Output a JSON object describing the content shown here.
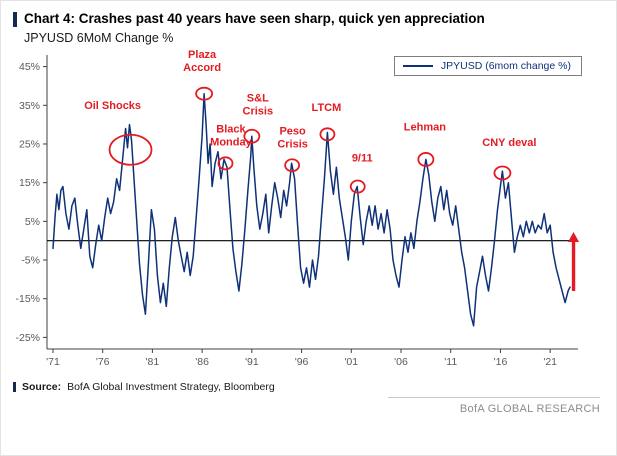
{
  "header": {
    "title": "Chart 4: Crashes past 40 years have seen sharp, quick yen appreciation",
    "subtitle": "JPYUSD 6MoM Change %"
  },
  "footer": {
    "source_label": "Source:",
    "source_text": "BofA Global Investment Strategy, Bloomberg",
    "brand": "BofA GLOBAL RESEARCH"
  },
  "colors": {
    "navy": "#0e3178",
    "red": "#e31b23",
    "accent": "#13294f",
    "axis_text": "#595959"
  },
  "chart_data": {
    "type": "line",
    "title": "Chart 4: Crashes past 40 years have seen sharp, quick yen appreciation",
    "ylabel": "JPYUSD 6MoM Change %",
    "xlabel": "",
    "xlim": [
      1970.4,
      2023.8
    ],
    "ylim": [
      -28,
      48
    ],
    "grid": false,
    "zero_line": true,
    "legend_position": "top-right",
    "y_ticks": [
      {
        "y": 45,
        "label": "45%"
      },
      {
        "y": 35,
        "label": "35%"
      },
      {
        "y": 25,
        "label": "25%"
      },
      {
        "y": 15,
        "label": "15%"
      },
      {
        "y": 5,
        "label": "5%"
      },
      {
        "y": -5,
        "label": "-5%"
      },
      {
        "y": -15,
        "label": "-15%"
      },
      {
        "y": -25,
        "label": "-25%"
      }
    ],
    "x_ticks": [
      {
        "x": 1971,
        "label": "'71"
      },
      {
        "x": 1976,
        "label": "'76"
      },
      {
        "x": 1981,
        "label": "'81"
      },
      {
        "x": 1986,
        "label": "'86"
      },
      {
        "x": 1991,
        "label": "'91"
      },
      {
        "x": 1996,
        "label": "'96"
      },
      {
        "x": 2001,
        "label": "'01"
      },
      {
        "x": 2006,
        "label": "'06"
      },
      {
        "x": 2011,
        "label": "'11"
      },
      {
        "x": 2016,
        "label": "'16"
      },
      {
        "x": 2021,
        "label": "'21"
      }
    ],
    "series": [
      {
        "name": "JPYUSD (6mom change %)",
        "color": "#0e3178",
        "points": [
          [
            1971.0,
            -2
          ],
          [
            1971.2,
            6
          ],
          [
            1971.4,
            12
          ],
          [
            1971.6,
            8
          ],
          [
            1971.8,
            13
          ],
          [
            1972.0,
            14
          ],
          [
            1972.3,
            7
          ],
          [
            1972.6,
            3
          ],
          [
            1972.9,
            9
          ],
          [
            1973.2,
            11
          ],
          [
            1973.5,
            4
          ],
          [
            1973.8,
            -2
          ],
          [
            1974.1,
            3
          ],
          [
            1974.4,
            8
          ],
          [
            1974.7,
            -4
          ],
          [
            1975.0,
            -7
          ],
          [
            1975.3,
            -1
          ],
          [
            1975.6,
            4
          ],
          [
            1975.9,
            0
          ],
          [
            1976.2,
            6
          ],
          [
            1976.5,
            11
          ],
          [
            1976.8,
            7
          ],
          [
            1977.1,
            10
          ],
          [
            1977.4,
            16
          ],
          [
            1977.7,
            13
          ],
          [
            1978.0,
            21
          ],
          [
            1978.3,
            29
          ],
          [
            1978.5,
            24
          ],
          [
            1978.7,
            30
          ],
          [
            1978.9,
            26
          ],
          [
            1979.1,
            18
          ],
          [
            1979.4,
            6
          ],
          [
            1979.7,
            -6
          ],
          [
            1980.0,
            -14
          ],
          [
            1980.3,
            -19
          ],
          [
            1980.6,
            -6
          ],
          [
            1980.9,
            8
          ],
          [
            1981.2,
            3
          ],
          [
            1981.5,
            -9
          ],
          [
            1981.8,
            -16
          ],
          [
            1982.1,
            -11
          ],
          [
            1982.4,
            -17
          ],
          [
            1982.7,
            -7
          ],
          [
            1983.0,
            1
          ],
          [
            1983.3,
            6
          ],
          [
            1983.6,
            0
          ],
          [
            1983.9,
            -4
          ],
          [
            1984.2,
            -8
          ],
          [
            1984.5,
            -3
          ],
          [
            1984.8,
            -9
          ],
          [
            1985.1,
            -4
          ],
          [
            1985.4,
            6
          ],
          [
            1985.7,
            16
          ],
          [
            1986.0,
            27
          ],
          [
            1986.2,
            38
          ],
          [
            1986.4,
            30
          ],
          [
            1986.6,
            20
          ],
          [
            1986.8,
            25
          ],
          [
            1987.0,
            14
          ],
          [
            1987.3,
            20
          ],
          [
            1987.6,
            23
          ],
          [
            1987.9,
            16
          ],
          [
            1988.2,
            21
          ],
          [
            1988.5,
            19
          ],
          [
            1988.8,
            8
          ],
          [
            1989.1,
            -2
          ],
          [
            1989.4,
            -8
          ],
          [
            1989.7,
            -13
          ],
          [
            1990.0,
            -6
          ],
          [
            1990.3,
            3
          ],
          [
            1990.6,
            13
          ],
          [
            1990.9,
            22
          ],
          [
            1991.0,
            27
          ],
          [
            1991.2,
            19
          ],
          [
            1991.5,
            9
          ],
          [
            1991.8,
            3
          ],
          [
            1992.1,
            7
          ],
          [
            1992.4,
            12
          ],
          [
            1992.7,
            2
          ],
          [
            1993.0,
            9
          ],
          [
            1993.3,
            15
          ],
          [
            1993.6,
            11
          ],
          [
            1993.9,
            6
          ],
          [
            1994.2,
            13
          ],
          [
            1994.5,
            9
          ],
          [
            1994.8,
            15
          ],
          [
            1995.0,
            20
          ],
          [
            1995.3,
            16
          ],
          [
            1995.6,
            4
          ],
          [
            1995.9,
            -7
          ],
          [
            1996.2,
            -11
          ],
          [
            1996.5,
            -7
          ],
          [
            1996.8,
            -12
          ],
          [
            1997.1,
            -5
          ],
          [
            1997.4,
            -10
          ],
          [
            1997.7,
            -4
          ],
          [
            1998.0,
            6
          ],
          [
            1998.3,
            16
          ],
          [
            1998.6,
            28
          ],
          [
            1998.9,
            18
          ],
          [
            1999.2,
            12
          ],
          [
            1999.5,
            19
          ],
          [
            1999.8,
            11
          ],
          [
            2000.1,
            6
          ],
          [
            2000.4,
            1
          ],
          [
            2000.7,
            -5
          ],
          [
            2001.0,
            5
          ],
          [
            2001.3,
            12
          ],
          [
            2001.6,
            14
          ],
          [
            2001.9,
            6
          ],
          [
            2002.2,
            -1
          ],
          [
            2002.5,
            5
          ],
          [
            2002.8,
            9
          ],
          [
            2003.1,
            4
          ],
          [
            2003.4,
            9
          ],
          [
            2003.7,
            3
          ],
          [
            2004.0,
            7
          ],
          [
            2004.3,
            2
          ],
          [
            2004.6,
            8
          ],
          [
            2004.9,
            3
          ],
          [
            2005.2,
            -5
          ],
          [
            2005.5,
            -9
          ],
          [
            2005.8,
            -12
          ],
          [
            2006.1,
            -5
          ],
          [
            2006.4,
            1
          ],
          [
            2006.7,
            -3
          ],
          [
            2007.0,
            2
          ],
          [
            2007.3,
            -2
          ],
          [
            2007.6,
            5
          ],
          [
            2007.9,
            10
          ],
          [
            2008.2,
            16
          ],
          [
            2008.5,
            21
          ],
          [
            2008.8,
            17
          ],
          [
            2009.1,
            10
          ],
          [
            2009.4,
            5
          ],
          [
            2009.7,
            11
          ],
          [
            2010.0,
            14
          ],
          [
            2010.3,
            8
          ],
          [
            2010.6,
            13
          ],
          [
            2010.9,
            7
          ],
          [
            2011.2,
            4
          ],
          [
            2011.5,
            9
          ],
          [
            2011.8,
            3
          ],
          [
            2012.1,
            -3
          ],
          [
            2012.4,
            -7
          ],
          [
            2012.7,
            -13
          ],
          [
            2013.0,
            -19
          ],
          [
            2013.3,
            -22
          ],
          [
            2013.6,
            -12
          ],
          [
            2013.9,
            -8
          ],
          [
            2014.2,
            -4
          ],
          [
            2014.5,
            -9
          ],
          [
            2014.8,
            -13
          ],
          [
            2015.1,
            -7
          ],
          [
            2015.4,
            0
          ],
          [
            2015.7,
            8
          ],
          [
            2016.0,
            14
          ],
          [
            2016.2,
            18
          ],
          [
            2016.5,
            11
          ],
          [
            2016.8,
            15
          ],
          [
            2017.1,
            6
          ],
          [
            2017.4,
            -3
          ],
          [
            2017.7,
            1
          ],
          [
            2018.0,
            4
          ],
          [
            2018.3,
            1
          ],
          [
            2018.6,
            5
          ],
          [
            2018.9,
            2
          ],
          [
            2019.2,
            5
          ],
          [
            2019.5,
            2
          ],
          [
            2019.8,
            4
          ],
          [
            2020.1,
            3
          ],
          [
            2020.4,
            7
          ],
          [
            2020.7,
            2
          ],
          [
            2021.0,
            4
          ],
          [
            2021.3,
            -3
          ],
          [
            2021.6,
            -7
          ],
          [
            2021.9,
            -10
          ],
          [
            2022.2,
            -13
          ],
          [
            2022.5,
            -16
          ],
          [
            2022.8,
            -13
          ],
          [
            2023.0,
            -12
          ]
        ]
      }
    ],
    "annotations": [
      {
        "id": "oil-shocks",
        "label_lines": [
          "Oil Shocks"
        ],
        "label_x": 1977.0,
        "label_y": 34,
        "circle_x": 1978.8,
        "circle_y": 23.5,
        "circle_rx": 21,
        "circle_ry": 15
      },
      {
        "id": "plaza-accord",
        "label_lines": [
          "Plaza",
          "Accord"
        ],
        "label_x": 1986.0,
        "label_y": 47.2,
        "circle_x": 1986.2,
        "circle_y": 38,
        "circle_rx": 8,
        "circle_ry": 6
      },
      {
        "id": "black-monday",
        "label_lines": [
          "Black",
          "Monday"
        ],
        "label_x": 1988.9,
        "label_y": 28,
        "circle_x": 1988.35,
        "circle_y": 20,
        "circle_rx": 7,
        "circle_ry": 6
      },
      {
        "id": "sl-crisis",
        "label_lines": [
          "S&L",
          "Crisis"
        ],
        "label_x": 1991.6,
        "label_y": 36,
        "circle_x": 1991.0,
        "circle_y": 27,
        "circle_rx": 7.5,
        "circle_ry": 6.5
      },
      {
        "id": "peso-crisis",
        "label_lines": [
          "Peso",
          "Crisis"
        ],
        "label_x": 1995.1,
        "label_y": 27.5,
        "circle_x": 1995.05,
        "circle_y": 19.5,
        "circle_rx": 7,
        "circle_ry": 6
      },
      {
        "id": "ltcm",
        "label_lines": [
          "LTCM"
        ],
        "label_x": 1998.5,
        "label_y": 33.5,
        "circle_x": 1998.6,
        "circle_y": 27.5,
        "circle_rx": 7,
        "circle_ry": 6
      },
      {
        "id": "nine-eleven",
        "label_lines": [
          "9/11"
        ],
        "label_x": 2002.1,
        "label_y": 20.5,
        "circle_x": 2001.65,
        "circle_y": 14,
        "circle_rx": 7,
        "circle_ry": 6
      },
      {
        "id": "lehman",
        "label_lines": [
          "Lehman"
        ],
        "label_x": 2008.4,
        "label_y": 28.5,
        "circle_x": 2008.5,
        "circle_y": 21,
        "circle_rx": 7.5,
        "circle_ry": 6.5
      },
      {
        "id": "cny-deval",
        "label_lines": [
          "CNY deval"
        ],
        "label_x": 2016.9,
        "label_y": 24.5,
        "circle_x": 2016.2,
        "circle_y": 17.5,
        "circle_rx": 8,
        "circle_ry": 6.5
      }
    ],
    "arrow": {
      "x": 2023.35,
      "y_from": -13,
      "y_to": 2,
      "color": "#e31b23"
    }
  }
}
